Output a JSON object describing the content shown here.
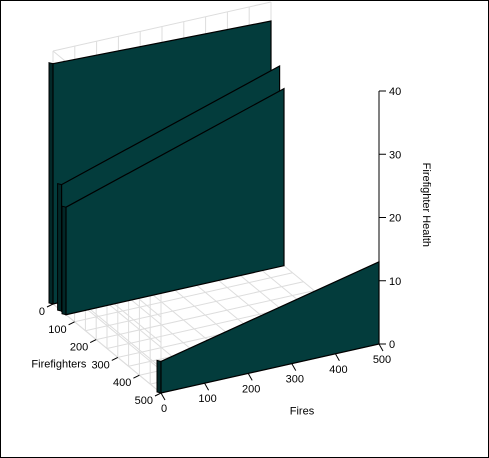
{
  "chart_data": {
    "type": "area",
    "title": "",
    "xlabel": "Fires",
    "ylabel": "Firefighters",
    "zlabel": "Firefighter Health",
    "x_ticks": [
      "0",
      "100",
      "200",
      "300",
      "400",
      "500"
    ],
    "y_ticks": [
      "0",
      "100",
      "200",
      "300",
      "400",
      "500"
    ],
    "z_ticks": [
      "0",
      "10",
      "20",
      "30",
      "40"
    ],
    "xlim": [
      0,
      500
    ],
    "ylim": [
      0,
      500
    ],
    "zlim": [
      0,
      40
    ],
    "grid": true,
    "colors": {
      "fill": "#033c3c",
      "edge": "#000000",
      "grid": "#dddddd",
      "axis": "#000000"
    },
    "series": [
      {
        "firefighters": 0,
        "fires": [
          0,
          500
        ],
        "health": [
          38,
          37
        ]
      },
      {
        "firefighters": 40,
        "fires": [
          0,
          500
        ],
        "health": [
          20,
          31
        ]
      },
      {
        "firefighters": 60,
        "fires": [
          0,
          500
        ],
        "health": [
          17,
          28
        ]
      },
      {
        "firefighters": 500,
        "fires": [
          0,
          500
        ],
        "health": [
          5,
          13
        ]
      }
    ]
  }
}
